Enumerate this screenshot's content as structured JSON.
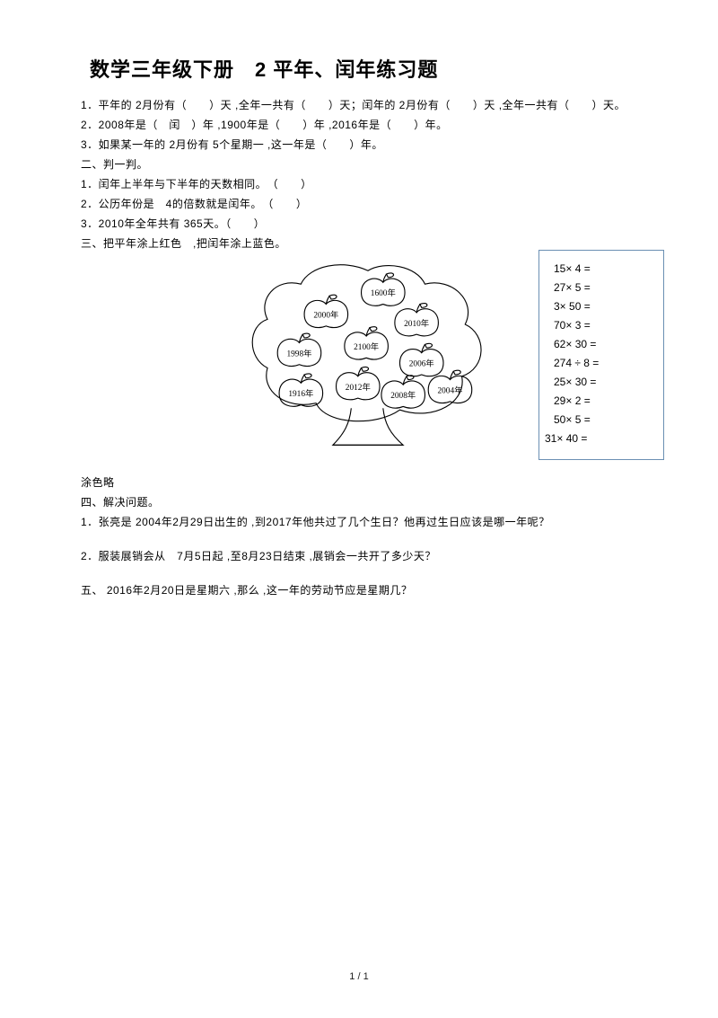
{
  "title": "数学三年级下册　2 平年、闰年练习题",
  "lines": {
    "l1": "1．平年的 2月份有（　　）天 ,全年一共有（　　）天；闰年的 2月份有（　　）天 ,全年一共有（　　）天。",
    "l2": "2．2008年是（　闰　）年 ,1900年是（　　）年 ,2016年是（　　）年。",
    "l3": "3．如果某一年的 2月份有 5个星期一 ,这一年是（　　）年。",
    "l4": "二、判一判。",
    "l5": "1．闰年上半年与下半年的天数相同。　（　　）",
    "l6": "2．公历年份是　4的倍数就是闰年。　（　　）",
    "l7": "3．2010年全年共有 365天。（　　）",
    "l8": "三、把平年涂上红色　,把闰年涂上蓝色。",
    "b1": "涂色略",
    "b2": "四、解决问题。",
    "b3": "1．张亮是 2004年2月29日出生的 ,到2017年他共过了几个生日？他再过生日应该是哪一年呢？",
    "b4": "2．服装展销会从　7月5日起 ,至8月23日结束 ,展销会一共开了多少天？",
    "b5": "五、 2016年2月20日是星期六 ,那么 ,这一年的劳动节应是星期几？"
  },
  "calc": [
    "15× 4 =",
    "27× 5 =",
    "3× 50 =",
    "70× 3 =",
    "62× 30 =",
    "274 ÷ 8 =",
    "25× 30 =",
    "29× 2 =",
    "50× 5 =",
    "31× 40 ="
  ],
  "tree": {
    "labels": [
      "1600年",
      "2000年",
      "2010年",
      "1998年",
      "2100年",
      "2006年",
      "1916年",
      "2012年",
      "2008年",
      "2004年"
    ]
  },
  "pageNum": "1 / 1"
}
